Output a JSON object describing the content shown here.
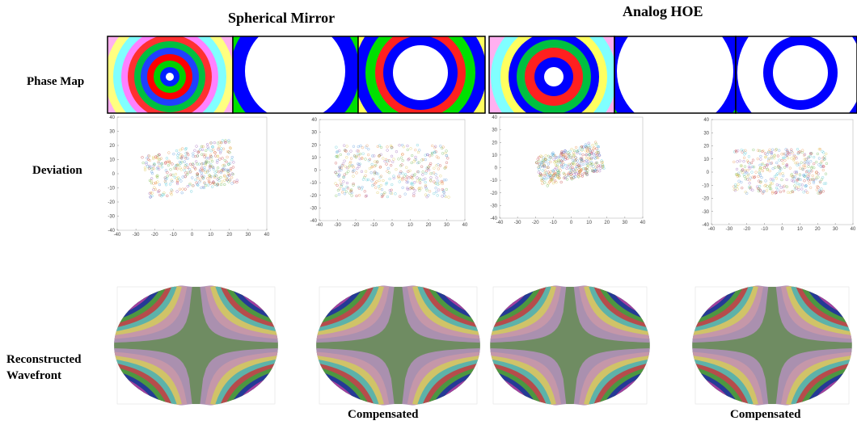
{
  "header": {
    "left_title": "Spherical Mirror",
    "right_title": "Analog HOE"
  },
  "row_labels": [
    "Phase Map",
    "Deviation",
    "Reconstructed Wavefront"
  ],
  "deviation_plots": [
    {
      "xticks": [
        -40,
        -30,
        -20,
        -10,
        0,
        10,
        20,
        30,
        40
      ],
      "yticks": [
        40,
        30,
        20,
        10,
        0,
        -10,
        -20,
        -30,
        -40
      ]
    },
    {
      "xticks": [
        -40,
        -30,
        -20,
        -10,
        0,
        10,
        20,
        30,
        40
      ],
      "yticks": [
        40,
        30,
        20,
        10,
        0,
        -10,
        -20,
        -30,
        -40
      ]
    },
    {
      "xticks": [
        -40,
        -30,
        -20,
        -10,
        0,
        10,
        20,
        30,
        40
      ],
      "yticks": [
        40,
        30,
        20,
        10,
        0,
        -10,
        -20,
        -30,
        -40
      ]
    },
    {
      "xticks": [
        -40,
        -30,
        -20,
        -10,
        0,
        10,
        20,
        30,
        40
      ],
      "yticks": [
        40,
        30,
        20,
        10,
        0,
        -10,
        -20,
        -30,
        -40
      ]
    }
  ],
  "captions": [
    "Compensated",
    "Compensated"
  ]
}
